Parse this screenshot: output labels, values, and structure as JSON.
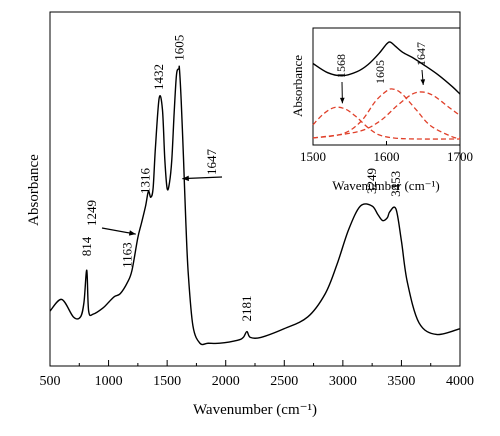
{
  "chart_data": [
    {
      "id": "main",
      "type": "line",
      "title": "",
      "xlabel": "Wavenumber (cm⁻¹)",
      "ylabel": "Absorbance",
      "xlim": [
        500,
        4000
      ],
      "xticks": [
        500,
        1000,
        1500,
        2000,
        2500,
        3000,
        3500,
        4000
      ],
      "ylim": [
        0,
        1
      ],
      "yticks_labeled": false,
      "grid": false,
      "series": [
        {
          "color": "#000000",
          "x": [
            500,
            600,
            700,
            760,
            790,
            814,
            830,
            870,
            950,
            1000,
            1050,
            1100,
            1163,
            1200,
            1249,
            1280,
            1316,
            1340,
            1360,
            1380,
            1400,
            1432,
            1460,
            1480,
            1500,
            1520,
            1540,
            1560,
            1580,
            1600,
            1605,
            1620,
            1640,
            1647,
            1660,
            1680,
            1720,
            1780,
            1850,
            1950,
            2100,
            2150,
            2181,
            2210,
            2300,
            2500,
            2700,
            2850,
            2950,
            3050,
            3150,
            3249,
            3300,
            3340,
            3380,
            3400,
            3453,
            3500,
            3550,
            3650,
            3800,
            4000
          ],
          "y": [
            0.14,
            0.18,
            0.12,
            0.12,
            0.17,
            0.28,
            0.14,
            0.13,
            0.15,
            0.17,
            0.19,
            0.2,
            0.24,
            0.28,
            0.39,
            0.44,
            0.5,
            0.55,
            0.53,
            0.56,
            0.7,
            0.87,
            0.83,
            0.66,
            0.56,
            0.58,
            0.66,
            0.82,
            0.95,
            0.97,
            0.97,
            0.86,
            0.66,
            0.58,
            0.44,
            0.27,
            0.09,
            0.03,
            0.03,
            0.03,
            0.04,
            0.05,
            0.07,
            0.05,
            0.05,
            0.08,
            0.12,
            0.2,
            0.3,
            0.42,
            0.5,
            0.5,
            0.47,
            0.45,
            0.46,
            0.48,
            0.49,
            0.38,
            0.24,
            0.1,
            0.06,
            0.08
          ]
        }
      ],
      "annotations": [
        {
          "text": "814",
          "x": 814
        },
        {
          "text": "1163",
          "x": 1163
        },
        {
          "text": "1249",
          "x": 1249
        },
        {
          "text": "1316",
          "x": 1316
        },
        {
          "text": "1432",
          "x": 1432
        },
        {
          "text": "1605",
          "x": 1605
        },
        {
          "text": "1647",
          "x": 1647
        },
        {
          "text": "2181",
          "x": 2181
        },
        {
          "text": "3249",
          "x": 3249
        },
        {
          "text": "3453",
          "x": 3453
        }
      ]
    },
    {
      "id": "inset",
      "type": "line",
      "title": "",
      "xlabel": "Wavenumber (cm⁻¹)",
      "ylabel": "Absorbance",
      "xlim": [
        1500,
        1700
      ],
      "xticks": [
        1500,
        1600,
        1700
      ],
      "ylim": [
        0,
        1
      ],
      "yticks_labeled": false,
      "grid": false,
      "series": [
        {
          "color": "#000000",
          "style": "solid",
          "x": [
            1500,
            1520,
            1540,
            1560,
            1575,
            1590,
            1600,
            1605,
            1612,
            1622,
            1635,
            1650,
            1670,
            1690,
            1700
          ],
          "y": [
            0.75,
            0.66,
            0.63,
            0.67,
            0.74,
            0.85,
            0.94,
            0.96,
            0.92,
            0.86,
            0.81,
            0.74,
            0.64,
            0.52,
            0.45
          ]
        },
        {
          "color": "#e0402a",
          "style": "dashed",
          "x": [
            1500,
            1515,
            1530,
            1545,
            1560,
            1575,
            1590,
            1610,
            1640,
            1700
          ],
          "y": [
            0.15,
            0.26,
            0.32,
            0.3,
            0.22,
            0.12,
            0.05,
            0.02,
            0.01,
            0.01
          ]
        },
        {
          "color": "#e0402a",
          "style": "dashed",
          "x": [
            1500,
            1540,
            1565,
            1585,
            1600,
            1608,
            1620,
            1640,
            1660,
            1690,
            1700
          ],
          "y": [
            0.02,
            0.06,
            0.18,
            0.38,
            0.48,
            0.5,
            0.46,
            0.3,
            0.14,
            0.03,
            0.02
          ]
        },
        {
          "color": "#e0402a",
          "style": "dashed",
          "x": [
            1500,
            1560,
            1590,
            1615,
            1635,
            1650,
            1665,
            1685,
            1700
          ],
          "y": [
            0.02,
            0.08,
            0.18,
            0.34,
            0.45,
            0.47,
            0.43,
            0.32,
            0.24
          ]
        }
      ],
      "annotations": [
        {
          "text": "1568",
          "x": 1568
        },
        {
          "text": "1605",
          "x": 1605
        },
        {
          "text": "1647",
          "x": 1647
        }
      ]
    }
  ]
}
